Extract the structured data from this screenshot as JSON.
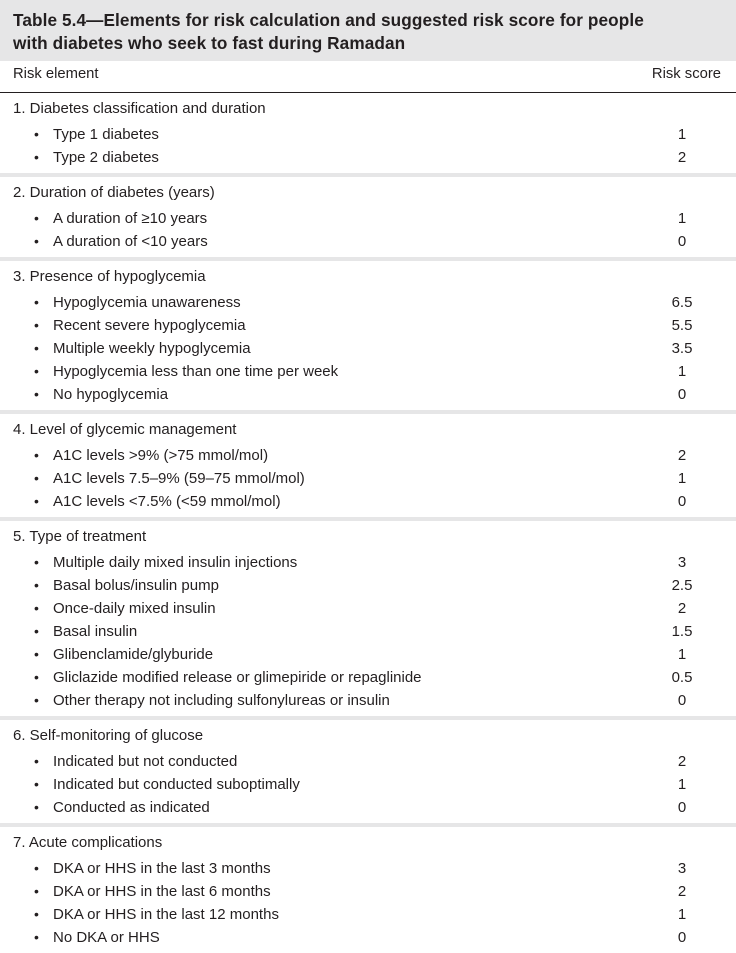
{
  "title": {
    "line1": "Table 5.4—Elements for risk calculation and suggested risk score for people",
    "line2": "with diabetes who seek to fast during Ramadan"
  },
  "header": {
    "left": "Risk element",
    "right": "Risk score"
  },
  "sections": [
    {
      "heading": "1. Diabetes classification and duration",
      "items": [
        {
          "label": "Type 1 diabetes",
          "score": "1"
        },
        {
          "label": "Type 2 diabetes",
          "score": "2"
        }
      ]
    },
    {
      "heading": "2. Duration of diabetes (years)",
      "items": [
        {
          "label": "A duration of ≥10 years",
          "score": "1"
        },
        {
          "label": "A duration of <10 years",
          "score": "0"
        }
      ]
    },
    {
      "heading": "3. Presence of hypoglycemia",
      "items": [
        {
          "label": "Hypoglycemia unawareness",
          "score": "6.5"
        },
        {
          "label": "Recent severe hypoglycemia",
          "score": "5.5"
        },
        {
          "label": "Multiple weekly hypoglycemia",
          "score": "3.5"
        },
        {
          "label": "Hypoglycemia less than one time per week",
          "score": "1"
        },
        {
          "label": "No hypoglycemia",
          "score": "0"
        }
      ]
    },
    {
      "heading": "4. Level of glycemic management",
      "items": [
        {
          "label": "A1C levels >9% (>75 mmol/mol)",
          "score": "2"
        },
        {
          "label": "A1C levels 7.5–9% (59–75 mmol/mol)",
          "score": "1"
        },
        {
          "label": "A1C levels <7.5% (<59 mmol/mol)",
          "score": "0"
        }
      ]
    },
    {
      "heading": "5. Type of treatment",
      "items": [
        {
          "label": "Multiple daily mixed insulin injections",
          "score": "3"
        },
        {
          "label": "Basal bolus/insulin pump",
          "score": "2.5"
        },
        {
          "label": "Once-daily mixed insulin",
          "score": "2"
        },
        {
          "label": "Basal insulin",
          "score": "1.5"
        },
        {
          "label": "Glibenclamide/glyburide",
          "score": "1"
        },
        {
          "label": "Gliclazide modified release or glimepiride or repaglinide",
          "score": "0.5"
        },
        {
          "label": "Other therapy not including sulfonylureas or insulin",
          "score": "0"
        }
      ]
    },
    {
      "heading": "6. Self-monitoring of glucose",
      "items": [
        {
          "label": "Indicated but not conducted",
          "score": "2"
        },
        {
          "label": "Indicated but conducted suboptimally",
          "score": "1"
        },
        {
          "label": "Conducted as indicated",
          "score": "0"
        }
      ]
    },
    {
      "heading": "7. Acute complications",
      "items": [
        {
          "label": "DKA or HHS in the last 3 months",
          "score": "3"
        },
        {
          "label": "DKA or HHS in the last 6 months",
          "score": "2"
        },
        {
          "label": "DKA or HHS in the last 12 months",
          "score": "1"
        },
        {
          "label": "No DKA or HHS",
          "score": "0"
        }
      ]
    }
  ],
  "colors": {
    "band": "#e6e6e7",
    "text": "#231f20"
  }
}
